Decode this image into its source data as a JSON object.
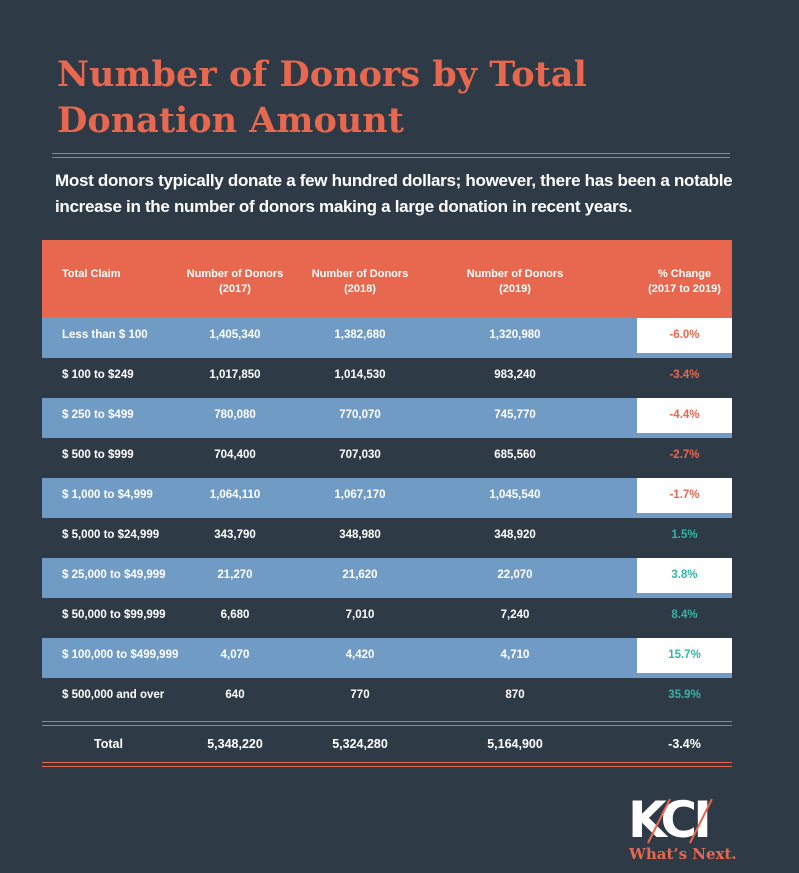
{
  "title": "Number of Donors by Total Donation Amount",
  "subtitle": "Most donors typically donate a few hundred dollars; however, there has been a notable increase in the number of donors making a large donation in recent years.",
  "colors": {
    "background": "#2e3b46",
    "accent": "#e8684f",
    "row_blue": "#6f9bc4",
    "positive": "#35b5a8"
  },
  "chart_data": {
    "type": "table",
    "columns": [
      "Total Claim",
      "Number of Donors (2017)",
      "Number of Donors (2018)",
      "Number of Donors (2019)",
      "% Change (2017 to 2019)"
    ],
    "header": [
      {
        "a": "Total Claim"
      },
      {
        "a": "Number of Donors",
        "b": "(2017)"
      },
      {
        "a": "Number of Donors",
        "b": "(2018)"
      },
      {
        "a": "Number of Donors",
        "b": "(2019)"
      },
      {
        "a": "% Change",
        "b": "(2017 to 2019)"
      }
    ],
    "rows": [
      [
        "Less than $ 100",
        "1,405,340",
        "1,382,680",
        "1,320,980",
        "-6.0%"
      ],
      [
        "$ 100 to $249",
        "1,017,850",
        "1,014,530",
        "983,240",
        "-3.4%"
      ],
      [
        "$ 250 to $499",
        "780,080",
        "770,070",
        "745,770",
        "-4.4%"
      ],
      [
        "$ 500 to $999",
        "704,400",
        "707,030",
        "685,560",
        "-2.7%"
      ],
      [
        "$ 1,000 to $4,999",
        "1,064,110",
        "1,067,170",
        "1,045,540",
        "-1.7%"
      ],
      [
        "$ 5,000 to $24,999",
        "343,790",
        "348,980",
        "348,920",
        "1.5%"
      ],
      [
        "$ 25,000 to $49,999",
        "21,270",
        "21,620",
        "22,070",
        "3.8%"
      ],
      [
        "$ 50,000 to $99,999",
        "6,680",
        "7,010",
        "7,240",
        "8.4%"
      ],
      [
        "$ 100,000  to $499,999",
        "4,070",
        "4,420",
        "4,710",
        "15.7%"
      ],
      [
        "$ 500,000 and over",
        "640",
        "770",
        "870",
        "35.9%"
      ]
    ],
    "total": [
      "Total",
      "5,348,220",
      "5,324,280",
      "5,164,900",
      "-3.4%"
    ]
  },
  "logo": {
    "text": "KCI",
    "tagline": "What's Next."
  }
}
